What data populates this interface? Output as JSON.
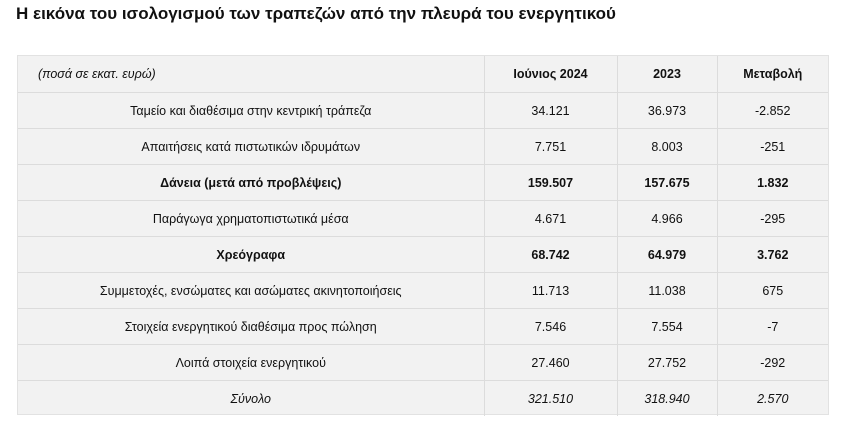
{
  "title": "Η εικόνα του ισολογισμού των τραπεζών από την πλευρά του ενεργητικού",
  "table": {
    "headers": {
      "units": "(ποσά σε εκατ. ευρώ)",
      "june_2024": "Ιούνιος 2024",
      "year_2023": "2023",
      "change": "Μεταβολή"
    },
    "rows": [
      {
        "label": "Ταμείο και διαθέσιμα στην κεντρική τράπεζα",
        "june_2024": "34.121",
        "year_2023": "36.973",
        "change": "-2.852"
      },
      {
        "label": "Απαιτήσεις κατά πιστωτικών ιδρυμάτων",
        "june_2024": "7.751",
        "year_2023": "8.003",
        "change": "-251"
      },
      {
        "label": "Δάνεια (μετά από προβλέψεις)",
        "june_2024": "159.507",
        "year_2023": "157.675",
        "change": "1.832"
      },
      {
        "label": "Παράγωγα χρηματοπιστωτικά μέσα",
        "june_2024": "4.671",
        "year_2023": "4.966",
        "change": "-295"
      },
      {
        "label": "Χρεόγραφα",
        "june_2024": "68.742",
        "year_2023": "64.979",
        "change": "3.762"
      },
      {
        "label": "Συμμετοχές, ενσώματες και ασώματες ακινητοποιήσεις",
        "june_2024": "11.713",
        "year_2023": "11.038",
        "change": "675"
      },
      {
        "label": "Στοιχεία ενεργητικού διαθέσιμα προς πώληση",
        "june_2024": "7.546",
        "year_2023": "7.554",
        "change": "-7"
      },
      {
        "label": "Λοιπά στοιχεία ενεργητικού",
        "june_2024": "27.460",
        "year_2023": "27.752",
        "change": "-292"
      }
    ],
    "total": {
      "label": "Σύνολο",
      "june_2024": "321.510",
      "year_2023": "318.940",
      "change": "2.570"
    }
  }
}
